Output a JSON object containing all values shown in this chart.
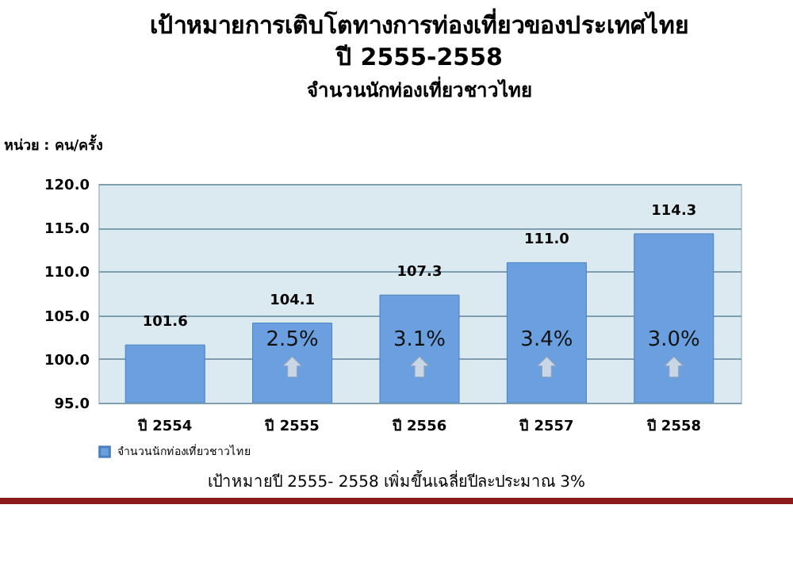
{
  "chart_data": {
    "type": "bar",
    "title": "เป้าหมายการเติบโตทางการท่องเที่ยวของประเทศไทย\nปี  2555-2558",
    "subtitle": "จำนวนนักท่องเที่ยวชาวไทย",
    "ylabel": "หน่วย : คน/ครั้ง",
    "categories": [
      "ปี 2554",
      "ปี 2555",
      "ปี 2556",
      "ปี 2557",
      "ปี 2558"
    ],
    "series": [
      {
        "name": "จำนวนนักท่องเที่ยวชาวไทย",
        "color": "#6a9fe0",
        "values": [
          101.6,
          104.1,
          107.3,
          111.0,
          114.3
        ]
      }
    ],
    "ylim": [
      95,
      120
    ],
    "yticks": [
      {
        "value": 95,
        "label": "95.0"
      },
      {
        "value": 100,
        "label": "100.0"
      },
      {
        "value": 105,
        "label": "105.0"
      },
      {
        "value": 110,
        "label": "110.0"
      },
      {
        "value": 115,
        "label": "115.0"
      },
      {
        "value": 120,
        "label": "120.0"
      }
    ],
    "grid": "y",
    "legend": "bottom",
    "value_labels": [
      "101.6",
      "104.1",
      "107.3",
      "111.0",
      "114.3"
    ],
    "annotations": [
      "2.5%",
      "3.1%",
      "3.4%",
      "3.0%",
      "เป้าหมายปี 2555- 2558 เพิ่มขึ้นเฉลี่ยปีละประมาณ 3%"
    ]
  }
}
